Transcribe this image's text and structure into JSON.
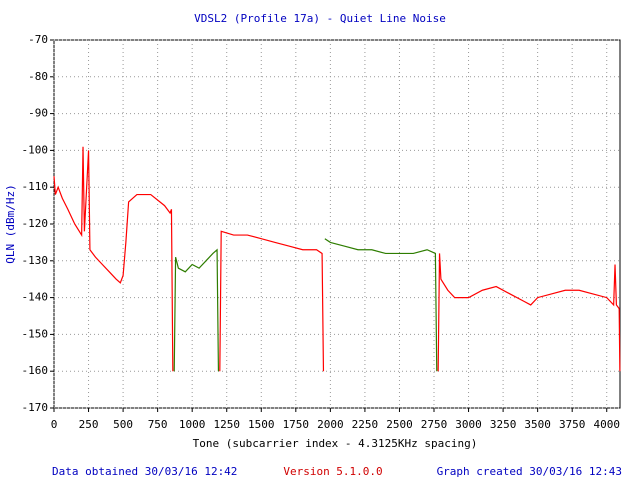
{
  "chart_data": {
    "type": "line",
    "title": "VDSL2 (Profile 17a) - Quiet Line Noise",
    "x_label": "Tone (subcarrier index - 4.3125KHz spacing)",
    "y_label": "QLN (dBm/Hz)",
    "footer_left": "Data obtained 30/03/16 12:42",
    "footer_center": "Version 5.1.0.0",
    "footer_right": "Graph created 30/03/16 12:43",
    "xlim": [
      0,
      4096
    ],
    "ylim": [
      -170,
      -70
    ],
    "xticks": [
      0,
      250,
      500,
      750,
      1000,
      1250,
      1500,
      1750,
      2000,
      2250,
      2500,
      2750,
      3000,
      3250,
      3500,
      3750,
      4000
    ],
    "yticks": [
      -70,
      -80,
      -90,
      -100,
      -110,
      -120,
      -130,
      -140,
      -150,
      -160,
      -170
    ],
    "grid": true,
    "series": [
      {
        "color": "#ff0000",
        "x": [
          0,
          10,
          30,
          60,
          100,
          150,
          200,
          210,
          220,
          250,
          260,
          300,
          350,
          400,
          450,
          480,
          500,
          520,
          540,
          600,
          700,
          800,
          840,
          850,
          860
        ],
        "values": [
          -107,
          -112,
          -110,
          -113,
          -116,
          -120,
          -123,
          -99,
          -122,
          -100,
          -127,
          -129,
          -131,
          -133,
          -135,
          -136,
          -134,
          -125,
          -114,
          -112,
          -112,
          -115,
          -117,
          -116,
          -160
        ]
      },
      {
        "color": "#2e7d00",
        "x": [
          870,
          880,
          900,
          950,
          1000,
          1050,
          1100,
          1150,
          1180,
          1190
        ],
        "values": [
          -160,
          -129,
          -132,
          -133,
          -131,
          -132,
          -130,
          -128,
          -127,
          -160
        ]
      },
      {
        "color": "#ff0000",
        "x": [
          1200,
          1210,
          1300,
          1400,
          1500,
          1600,
          1700,
          1800,
          1900,
          1940,
          1950
        ],
        "values": [
          -160,
          -122,
          -123,
          -123,
          -124,
          -125,
          -126,
          -127,
          -127,
          -128,
          -160
        ]
      },
      {
        "color": "#2e7d00",
        "x": [
          1960,
          2000,
          2100,
          2200,
          2300,
          2400,
          2500,
          2600,
          2700,
          2760,
          2770
        ],
        "values": [
          -124,
          -125,
          -126,
          -127,
          -127,
          -128,
          -128,
          -128,
          -127,
          -128,
          -160
        ]
      },
      {
        "color": "#ff0000",
        "x": [
          2780,
          2790,
          2800,
          2850,
          2900,
          3000,
          3100,
          3200,
          3300,
          3400,
          3450,
          3500,
          3600,
          3700,
          3800,
          3900,
          4000,
          4050,
          4060,
          4070,
          4090,
          4095
        ],
        "values": [
          -160,
          -128,
          -135,
          -138,
          -140,
          -140,
          -138,
          -137,
          -139,
          -141,
          -142,
          -140,
          -139,
          -138,
          -138,
          -139,
          -140,
          -142,
          -131,
          -142,
          -143,
          -160
        ]
      }
    ]
  }
}
